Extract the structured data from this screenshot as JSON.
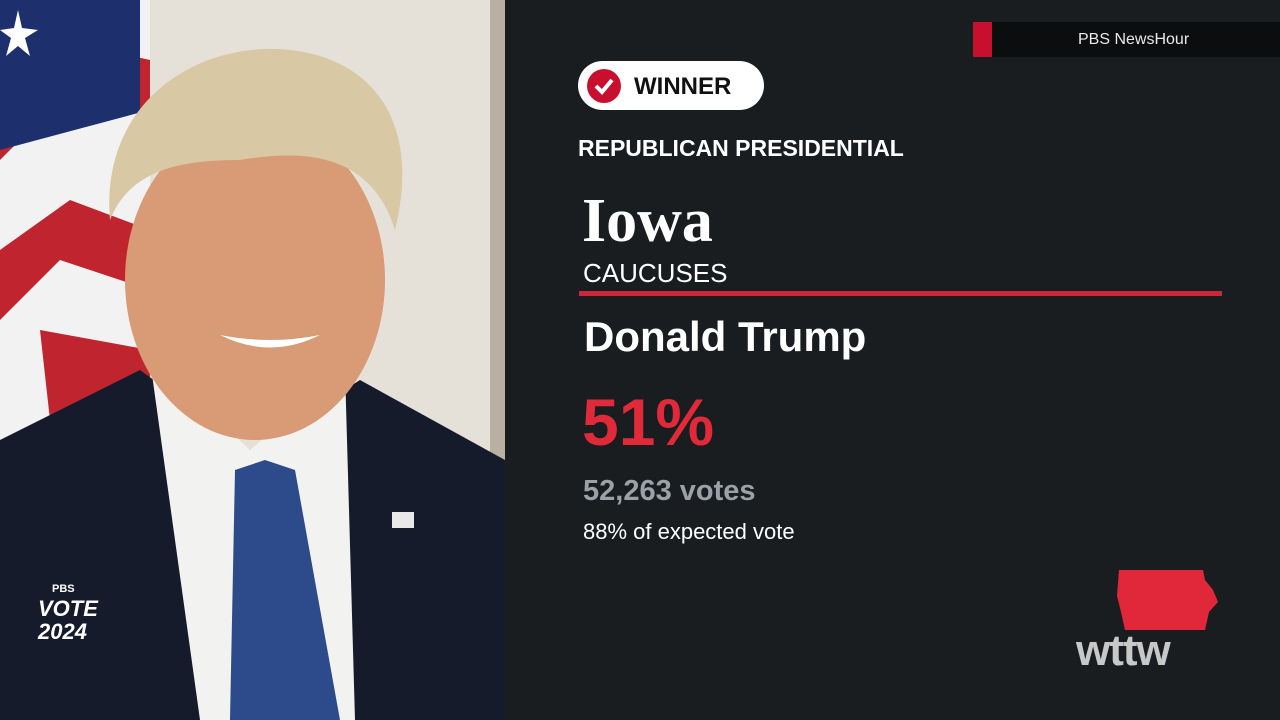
{
  "network": "PBS NewsHour",
  "badge": "WINNER",
  "race": "REPUBLICAN PRESIDENTIAL",
  "state": "Iowa",
  "contest": "CAUCUSES",
  "candidate": "Donald Trump",
  "percent": "51%",
  "votes": "52,263 votes",
  "expected": "88% of expected vote",
  "logo": {
    "pbs": "PBS",
    "vote": "VOTE",
    "year": "2024"
  },
  "station": "wttw"
}
